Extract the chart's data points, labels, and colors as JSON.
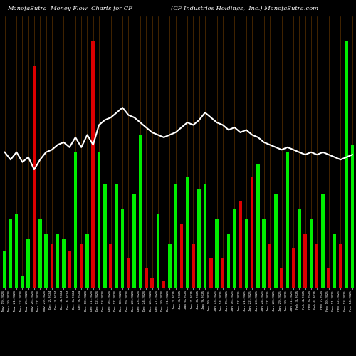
{
  "title_left": "ManofaSutra  Money Flow  Charts for CF",
  "title_right": "(CF Industries Holdings,  Inc.) ManofaSutra.com",
  "background_color": "#000000",
  "bar_color_pos": "#00ee00",
  "bar_color_neg": "#dd0000",
  "line_color": "#ffffff",
  "grid_color": "#6b3a00",
  "categories": [
    "Nov 19,2024",
    "Nov 20,2024",
    "Nov 21,2024",
    "Nov 22,2024",
    "Nov 25,2024",
    "Nov 26,2024",
    "Nov 27,2024",
    "Nov 29,2024",
    "Dec 2,2024",
    "Dec 3,2024",
    "Dec 4,2024",
    "Dec 5,2024",
    "Dec 6,2024",
    "Dec 9,2024",
    "Dec 10,2024",
    "Dec 11,2024",
    "Dec 12,2024",
    "Dec 13,2024",
    "Dec 16,2024",
    "Dec 17,2024",
    "Dec 18,2024",
    "Dec 19,2024",
    "Dec 20,2024",
    "Dec 23,2024",
    "Dec 24,2024",
    "Dec 26,2024",
    "Dec 27,2024",
    "Dec 30,2024",
    "Dec 31,2024",
    "Jan 2,2025",
    "Jan 3,2025",
    "Jan 6,2025",
    "Jan 7,2025",
    "Jan 8,2025",
    "Jan 9,2025",
    "Jan 10,2025",
    "Jan 13,2025",
    "Jan 14,2025",
    "Jan 15,2025",
    "Jan 16,2025",
    "Jan 17,2025",
    "Jan 21,2025",
    "Jan 22,2025",
    "Jan 23,2025",
    "Jan 24,2025",
    "Jan 27,2025",
    "Jan 28,2025",
    "Jan 29,2025",
    "Jan 30,2025",
    "Jan 31,2025",
    "Feb 3,2025",
    "Feb 4,2025",
    "Feb 5,2025",
    "Feb 6,2025",
    "Feb 7,2025",
    "Feb 10,2025",
    "Feb 11,2025",
    "Feb 12,2025",
    "Feb 13,2025",
    "Feb 14,2025"
  ],
  "heights": [
    15,
    28,
    30,
    5,
    20,
    90,
    28,
    22,
    18,
    22,
    20,
    15,
    55,
    18,
    22,
    100,
    55,
    42,
    18,
    42,
    32,
    12,
    38,
    62,
    8,
    4,
    30,
    3,
    18,
    42,
    26,
    45,
    18,
    40,
    42,
    12,
    28,
    12,
    22,
    32,
    35,
    28,
    45,
    50,
    28,
    18,
    38,
    8,
    55,
    16,
    32,
    22,
    28,
    18,
    38,
    8,
    22,
    18,
    100,
    58
  ],
  "colors": [
    "G",
    "G",
    "G",
    "G",
    "G",
    "R",
    "G",
    "G",
    "R",
    "G",
    "G",
    "R",
    "G",
    "R",
    "G",
    "R",
    "G",
    "G",
    "R",
    "G",
    "G",
    "R",
    "G",
    "G",
    "R",
    "R",
    "G",
    "R",
    "G",
    "G",
    "R",
    "G",
    "R",
    "G",
    "G",
    "R",
    "G",
    "R",
    "G",
    "G",
    "R",
    "G",
    "R",
    "G",
    "G",
    "R",
    "G",
    "R",
    "G",
    "R",
    "G",
    "R",
    "G",
    "R",
    "G",
    "R",
    "G",
    "R",
    "G",
    "G"
  ],
  "line_values": [
    55,
    52,
    55,
    51,
    53,
    48,
    52,
    55,
    56,
    58,
    59,
    57,
    61,
    57,
    62,
    58,
    66,
    68,
    69,
    71,
    73,
    70,
    69,
    67,
    65,
    63,
    62,
    61,
    62,
    63,
    65,
    67,
    66,
    68,
    71,
    69,
    67,
    66,
    64,
    65,
    63,
    64,
    62,
    61,
    59,
    58,
    57,
    56,
    57,
    56,
    55,
    54,
    55,
    54,
    55,
    54,
    53,
    52,
    53,
    54
  ],
  "ylim": [
    0,
    110
  ],
  "figsize": [
    5.0,
    5.0
  ],
  "dpi": 100
}
